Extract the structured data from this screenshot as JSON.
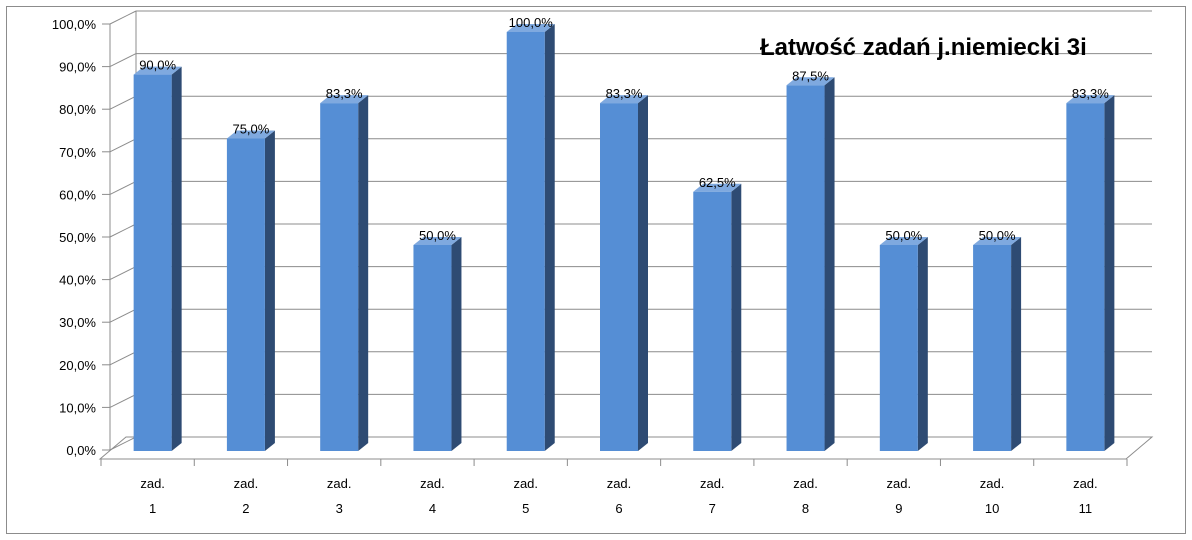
{
  "chart_data": {
    "type": "bar",
    "title": "Łatwość zadań j.niemiecki 3i",
    "categories": [
      [
        "zad.",
        "1"
      ],
      [
        "zad.",
        "2"
      ],
      [
        "zad.",
        "3"
      ],
      [
        "zad.",
        "4"
      ],
      [
        "zad.",
        "5"
      ],
      [
        "zad.",
        "6"
      ],
      [
        "zad.",
        "7"
      ],
      [
        "zad.",
        "8"
      ],
      [
        "zad.",
        "9"
      ],
      [
        "zad.",
        "10"
      ],
      [
        "zad.",
        "11"
      ]
    ],
    "values": [
      90.0,
      75.0,
      83.3,
      50.0,
      100.0,
      83.3,
      62.5,
      87.5,
      50.0,
      50.0,
      83.3
    ],
    "value_labels": [
      "90,0%",
      "75,0%",
      "83,3%",
      "50,0%",
      "100,0%",
      "83,3%",
      "62,5%",
      "87,5%",
      "50,0%",
      "50,0%",
      "83,3%"
    ],
    "ylim": [
      0,
      100
    ],
    "yticks": [
      0,
      10,
      20,
      30,
      40,
      50,
      60,
      70,
      80,
      90,
      100
    ],
    "ytick_labels": [
      "0,0%",
      "10,0%",
      "20,0%",
      "30,0%",
      "40,0%",
      "50,0%",
      "60,0%",
      "70,0%",
      "80,0%",
      "90,0%",
      "100,0%"
    ],
    "grid": true,
    "legend": "none",
    "style": "3d-column",
    "colors": {
      "bar_front": "#558ed5",
      "bar_side": "#2e4b73",
      "bar_top": "#7fa9df",
      "gridline": "#8c8c8c",
      "axis": "#8c8c8c"
    }
  }
}
